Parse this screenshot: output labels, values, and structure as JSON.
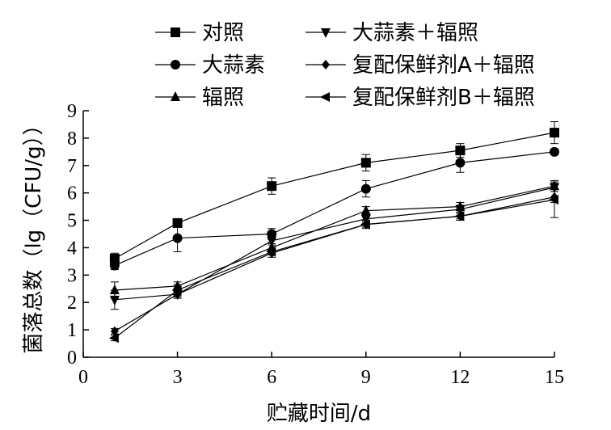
{
  "chart_data": {
    "type": "line",
    "xlabel": "贮藏时间/d",
    "ylabel": "菌落总数（lg（CFU/g））",
    "xlim": [
      0,
      15
    ],
    "ylim": [
      0,
      9
    ],
    "x_ticks": [
      "0",
      "3",
      "6",
      "9",
      "12",
      "15"
    ],
    "y_ticks": [
      "0",
      "1",
      "2",
      "3",
      "4",
      "5",
      "6",
      "7",
      "8",
      "9"
    ],
    "grid": false,
    "legend_position": "top",
    "x": [
      1,
      3,
      6,
      9,
      12,
      15
    ],
    "series": [
      {
        "name": "对照",
        "marker": "square",
        "values": [
          3.6,
          4.9,
          6.25,
          7.1,
          7.55,
          8.2
        ],
        "errors": [
          0.2,
          0.1,
          0.3,
          0.3,
          0.25,
          0.4
        ]
      },
      {
        "name": "大蒜素",
        "marker": "circle",
        "values": [
          3.35,
          4.35,
          4.5,
          6.15,
          7.1,
          7.5
        ],
        "errors": [
          0.15,
          0.5,
          0.2,
          0.3,
          0.35,
          0.1
        ]
      },
      {
        "name": "辐照",
        "marker": "triangle-up",
        "values": [
          2.45,
          2.6,
          4.0,
          5.35,
          5.5,
          6.25
        ],
        "errors": [
          0.3,
          0.15,
          0.15,
          0.15,
          0.15,
          0.2
        ]
      },
      {
        "name": "大蒜素＋辐照",
        "marker": "triangle-down",
        "values": [
          2.1,
          2.3,
          4.25,
          5.05,
          5.4,
          6.2
        ],
        "errors": [
          0.35,
          0.15,
          0.15,
          0.15,
          0.15,
          0.15
        ]
      },
      {
        "name": "复配保鲜剂A＋辐照",
        "marker": "diamond",
        "values": [
          0.95,
          2.3,
          3.8,
          4.85,
          5.15,
          5.85
        ],
        "errors": [
          0.1,
          0.1,
          0.15,
          0.15,
          0.15,
          0.2
        ]
      },
      {
        "name": "复配保鲜剂B＋辐照",
        "marker": "triangle-left",
        "values": [
          0.7,
          2.45,
          3.85,
          4.85,
          5.15,
          5.75
        ],
        "errors": [
          0.1,
          0.2,
          0.1,
          0.1,
          0.1,
          0.65
        ]
      }
    ]
  }
}
